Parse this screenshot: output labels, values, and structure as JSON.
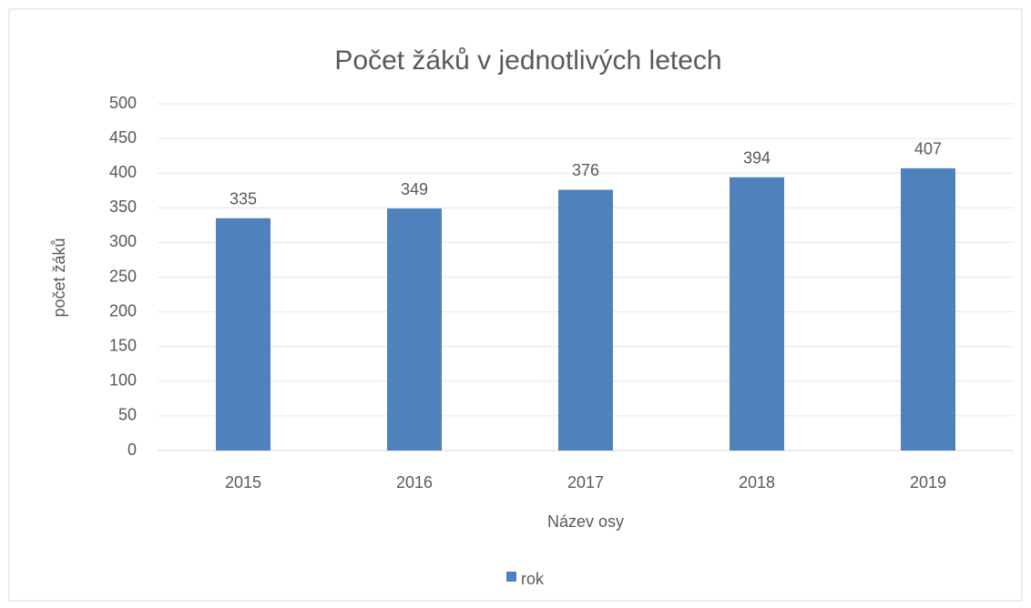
{
  "chart_data": {
    "type": "bar",
    "title": "Počet žáků v jednotlivých letech",
    "x_label": "Název osy",
    "y_label": "počet žáků",
    "categories": [
      "2015",
      "2016",
      "2017",
      "2018",
      "2019"
    ],
    "series": [
      {
        "name": "rok",
        "color": "#4f81bd",
        "values": [
          335,
          349,
          376,
          394,
          407
        ]
      }
    ],
    "ylim": [
      0,
      500
    ],
    "yticks": [
      0,
      50,
      100,
      150,
      200,
      250,
      300,
      350,
      400,
      450,
      500
    ],
    "grid": true,
    "legend": "bottom"
  }
}
